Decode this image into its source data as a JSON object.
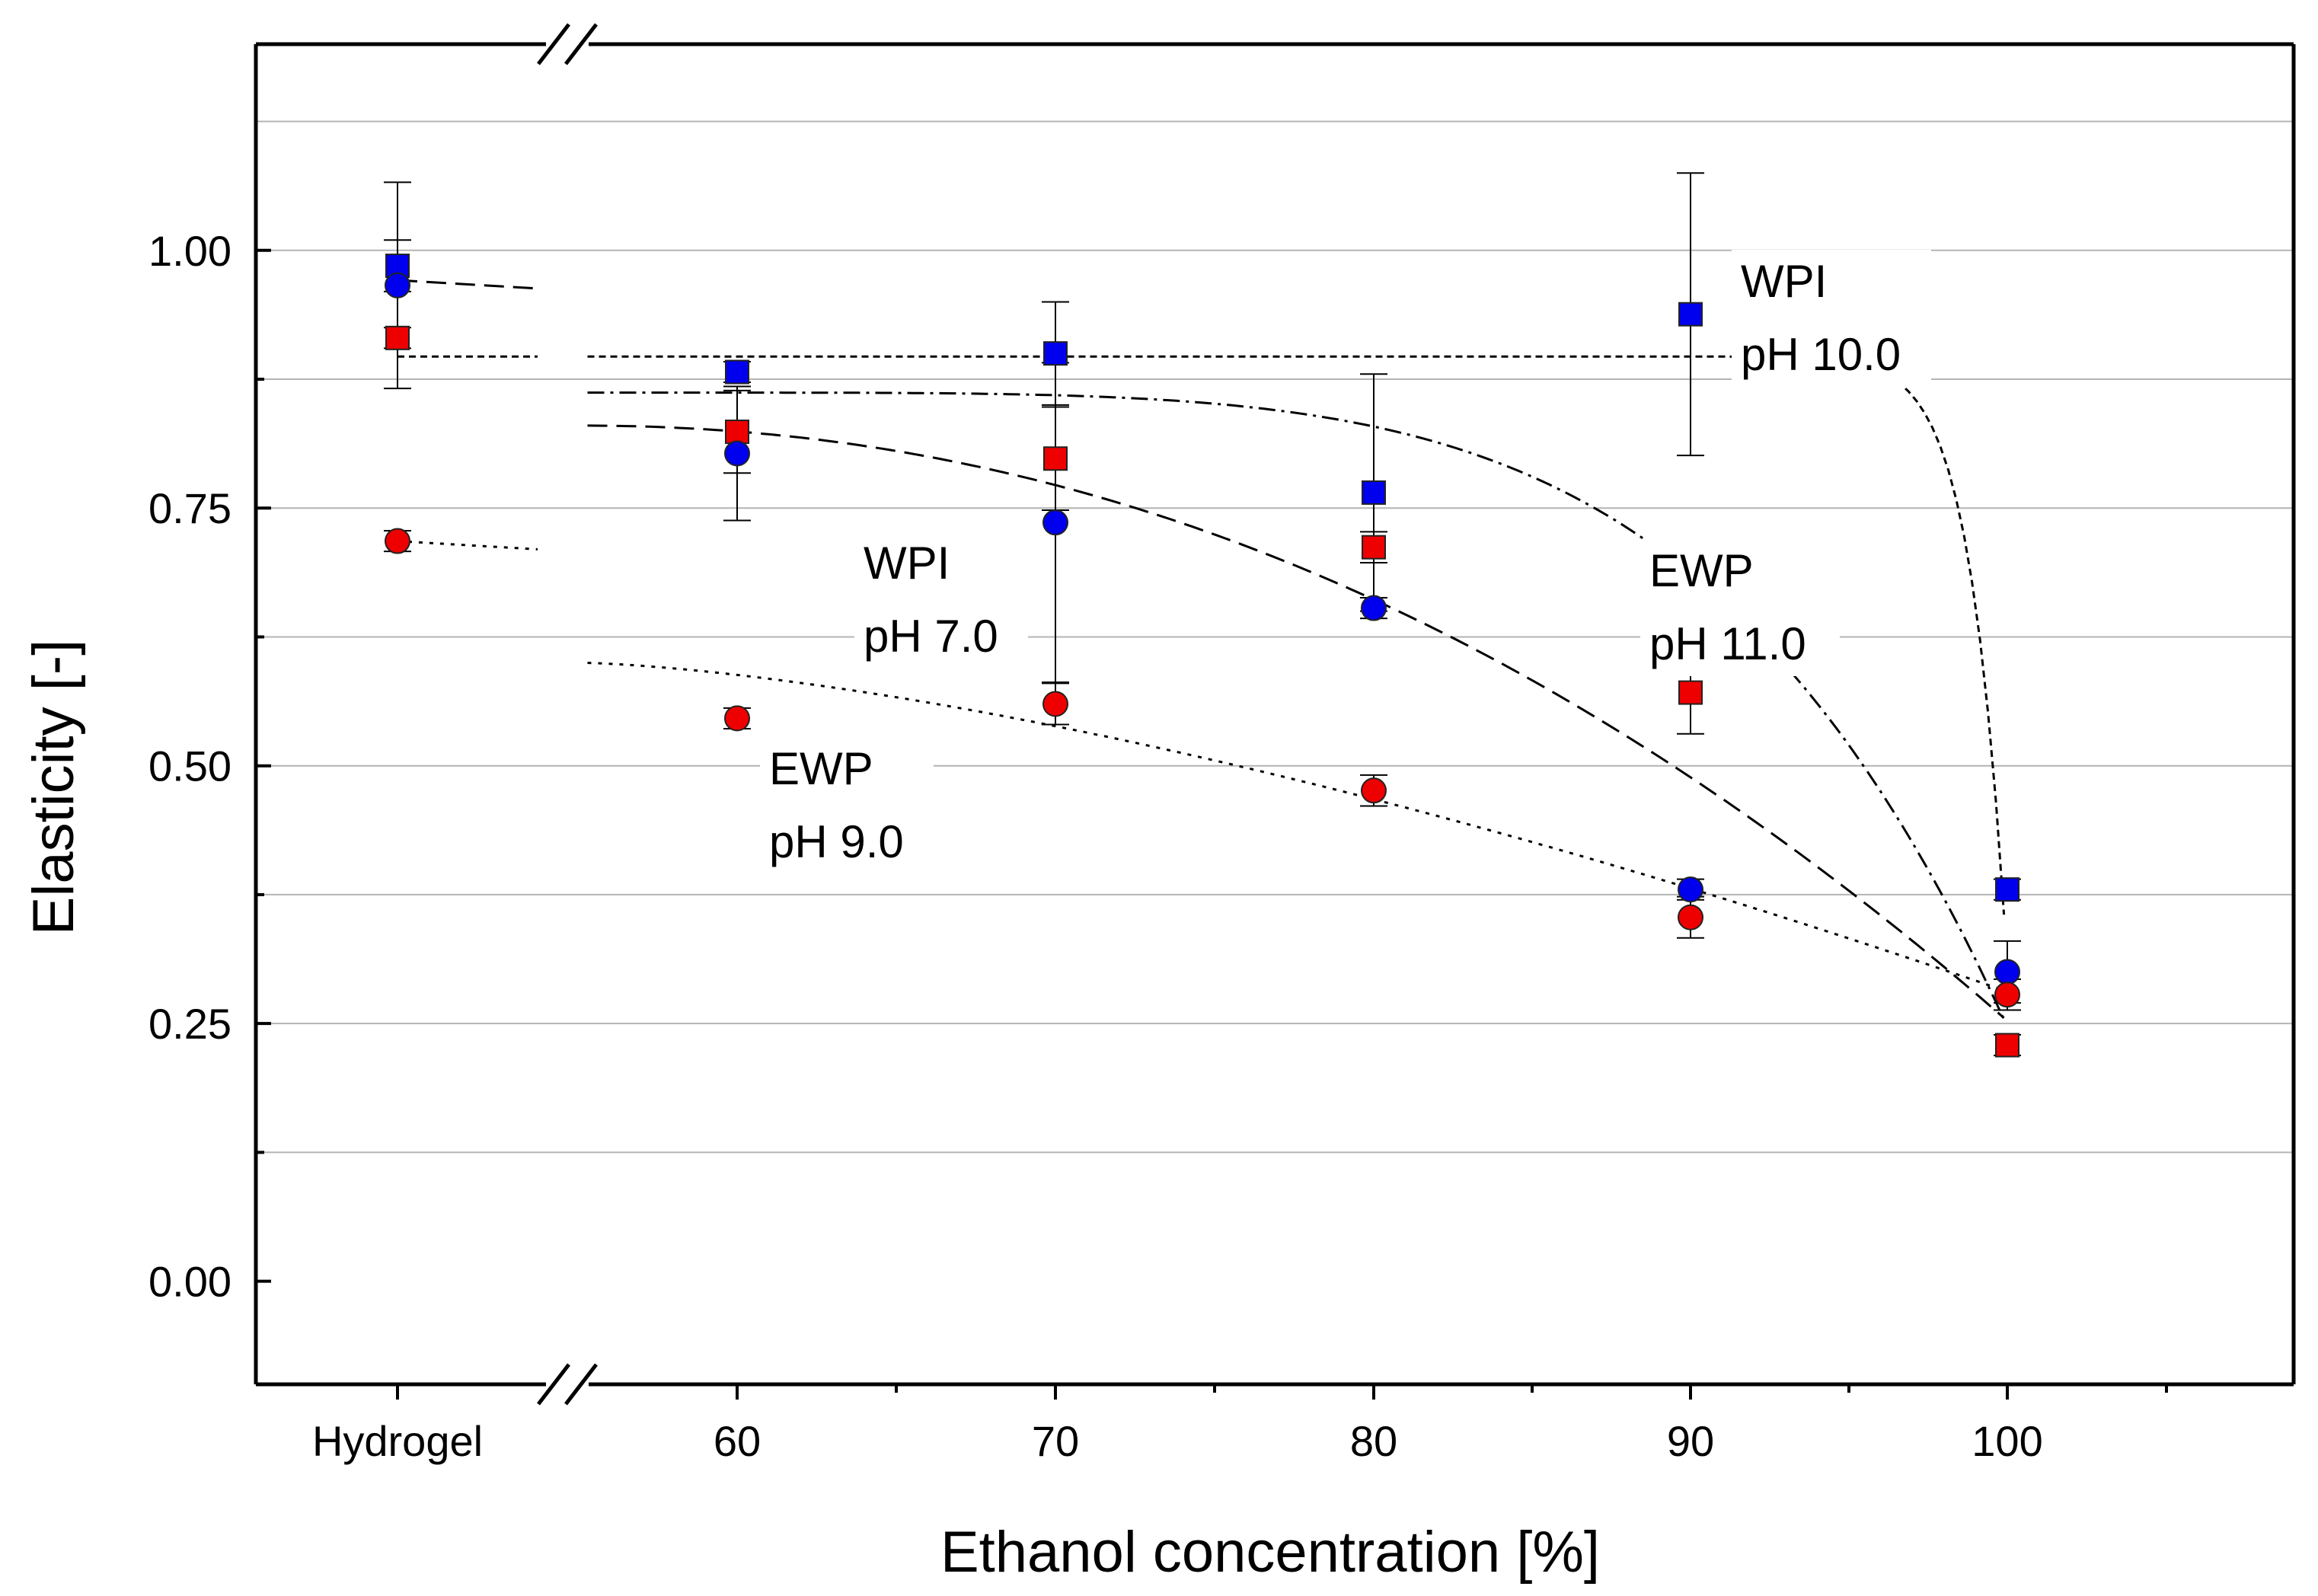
{
  "chart_data": {
    "type": "scatter",
    "title": "",
    "xlabel": "Ethanol concentration [%]",
    "ylabel": "Elasticity [-]",
    "ylim": [
      -0.1,
      1.2
    ],
    "yticks": [
      0.0,
      0.25,
      0.5,
      0.75,
      1.0
    ],
    "ytick_labels": [
      "0.00",
      "0.25",
      "0.50",
      "0.75",
      "1.00"
    ],
    "categories": [
      "Hydrogel",
      "60",
      "70",
      "80",
      "90",
      "100"
    ],
    "axis_break": "between Hydrogel and 60",
    "grid": true,
    "series": [
      {
        "name": "WPI pH 10.0",
        "marker": "square",
        "color": "#0000ee",
        "values": [
          0.985,
          0.882,
          0.9,
          0.765,
          0.938,
          0.38
        ],
        "errors": [
          0.025,
          0.01,
          0.05,
          0.115,
          0.137,
          0.01
        ],
        "fit": "short-dash",
        "annotation": [
          "WPI",
          "pH 10.0"
        ]
      },
      {
        "name": "EWP pH 11.0",
        "marker": "square",
        "color": "#ee0000",
        "values": [
          0.915,
          0.824,
          0.798,
          0.712,
          0.571,
          0.229
        ],
        "errors": [
          0.01,
          0.04,
          0.05,
          0.015,
          0.04,
          0.01
        ],
        "fit": "dash-dot",
        "annotation": [
          "EWP",
          "pH 11.0"
        ]
      },
      {
        "name": "WPI pH 7.0",
        "marker": "circle",
        "color": "#0000ee",
        "values": [
          0.966,
          0.803,
          0.736,
          0.653,
          0.38,
          0.3
        ],
        "errors": [
          0.1,
          0.065,
          0.155,
          0.01,
          0.01,
          0.03
        ],
        "fit": "dash",
        "annotation": [
          "WPI",
          "pH 7.0"
        ]
      },
      {
        "name": "EWP pH 9.0",
        "marker": "circle",
        "color": "#ee0000",
        "values": [
          0.718,
          0.546,
          0.56,
          0.476,
          0.353,
          0.278
        ],
        "errors": [
          0.01,
          0.01,
          0.02,
          0.015,
          0.02,
          0.015
        ],
        "fit": "dot",
        "annotation": [
          "EWP",
          "pH 9.0"
        ]
      }
    ]
  }
}
